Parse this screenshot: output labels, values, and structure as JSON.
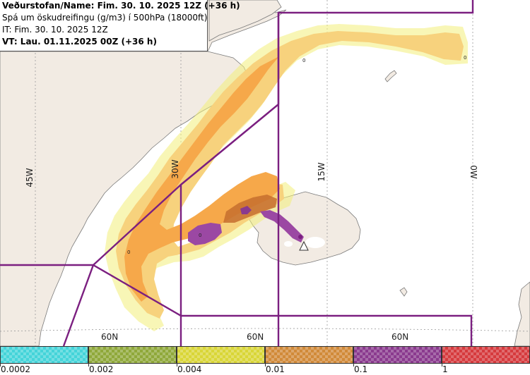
{
  "header": {
    "line1": "Veðurstofan/Name: Fim. 30. 10. 2025 12Z (+36 h)",
    "line2": "Spá um öskudreifingu (g/m3) í 500hPa (18000ft)",
    "line3": "IT: Fim. 30. 10. 2025 12Z",
    "line4": "VT: Lau. 01.11.2025 00Z (+36 h)"
  },
  "map": {
    "lon_labels": [
      "45W",
      "30W",
      "15W",
      "0W"
    ],
    "lat_labels": [
      "60N",
      "60N",
      "60N"
    ],
    "contour_labels": [
      "0",
      "0",
      "0",
      "0"
    ],
    "colors": {
      "land": "#f2ebe3",
      "coast": "#7a7a7a",
      "boundary": "#7b1f80",
      "grid": "#9a9a9a",
      "ash_light": "#f7d27d",
      "ash_mid": "#f6a84a",
      "ash_dark": "#c56f2e",
      "ash_purple": "#9b48a3",
      "ash_cyan": "#7fe6ef",
      "ash_yellow": "#f2ef7a"
    }
  },
  "legend": {
    "labels": [
      "0.0002",
      "0.002",
      "0.004",
      "0.01",
      "0.1",
      "1"
    ],
    "colors": [
      "#44d4d9",
      "#8fa83a",
      "#d9d637",
      "#d18a39",
      "#8a3a8e",
      "#d63a3d"
    ]
  }
}
